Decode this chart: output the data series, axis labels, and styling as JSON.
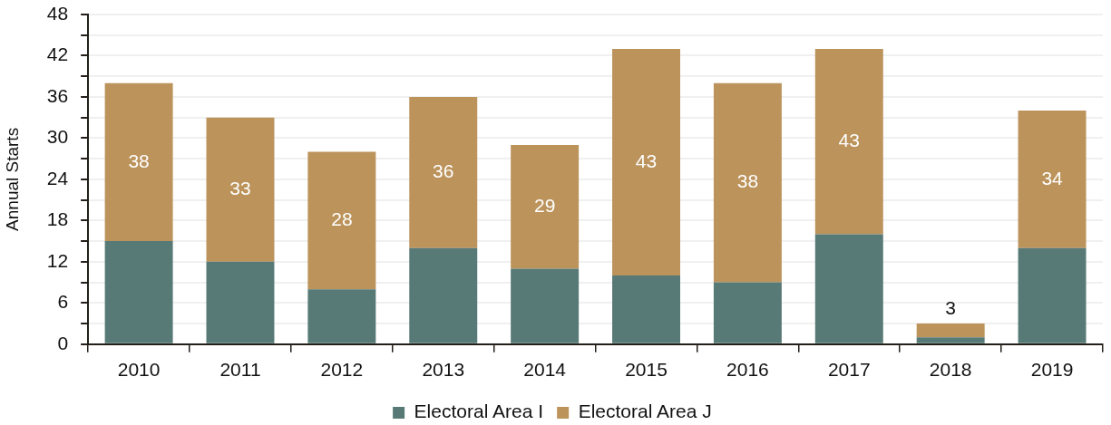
{
  "chart_data": {
    "type": "bar",
    "stacked": true,
    "ylabel": "Annual Starts",
    "categories": [
      "2010",
      "2011",
      "2012",
      "2013",
      "2014",
      "2015",
      "2016",
      "2017",
      "2018",
      "2019"
    ],
    "series": [
      {
        "name": "Electoral Area I",
        "color": "#587a76",
        "values": [
          15,
          12,
          8,
          14,
          11,
          10,
          9,
          16,
          1,
          14
        ]
      },
      {
        "name": "Electoral Area J",
        "color": "#bb935b",
        "values": [
          23,
          21,
          20,
          22,
          18,
          33,
          29,
          27,
          2,
          20
        ]
      }
    ],
    "totals": [
      "38",
      "33",
      "28",
      "36",
      "29",
      "43",
      "38",
      "43",
      "3",
      "34"
    ],
    "ylim": [
      0,
      48
    ],
    "yticks": [
      0,
      {
        "value": 3,
        "label": null
      },
      6,
      {
        "value": 9,
        "label": null
      },
      12,
      {
        "value": 15,
        "label": null
      },
      18,
      {
        "value": 21,
        "label": null
      },
      24,
      {
        "value": 27,
        "label": null
      },
      30,
      {
        "value": 33,
        "label": null
      },
      36,
      {
        "value": 39,
        "label": null
      },
      42,
      {
        "value": 45,
        "label": null
      },
      48
    ],
    "grid": "y",
    "legend": "bottom"
  }
}
